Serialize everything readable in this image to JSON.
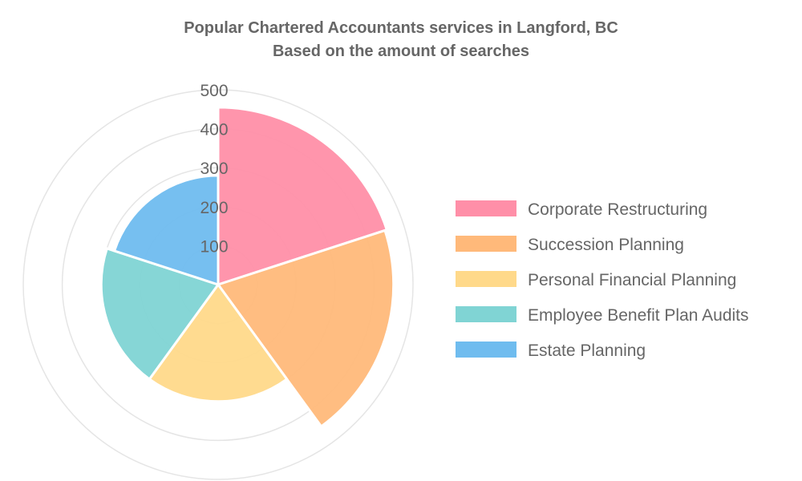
{
  "chart_data": {
    "type": "polarArea",
    "title": [
      "Popular Chartered Accountants services in Langford, BC",
      "Based on the amount of searches"
    ],
    "categories": [
      "Corporate Restructuring",
      "Succession Planning",
      "Personal Financial Planning",
      "Employee Benefit Plan Audits",
      "Estate Planning"
    ],
    "values": [
      455,
      450,
      300,
      300,
      280
    ],
    "colors": [
      "#ff8fa8",
      "#ffb97a",
      "#ffd98a",
      "#80d4d4",
      "#6fbcef"
    ],
    "rlim": [
      0,
      500
    ],
    "ticks": [
      "100",
      "200",
      "300",
      "400",
      "500"
    ],
    "legend_position": "right",
    "grid": true
  }
}
